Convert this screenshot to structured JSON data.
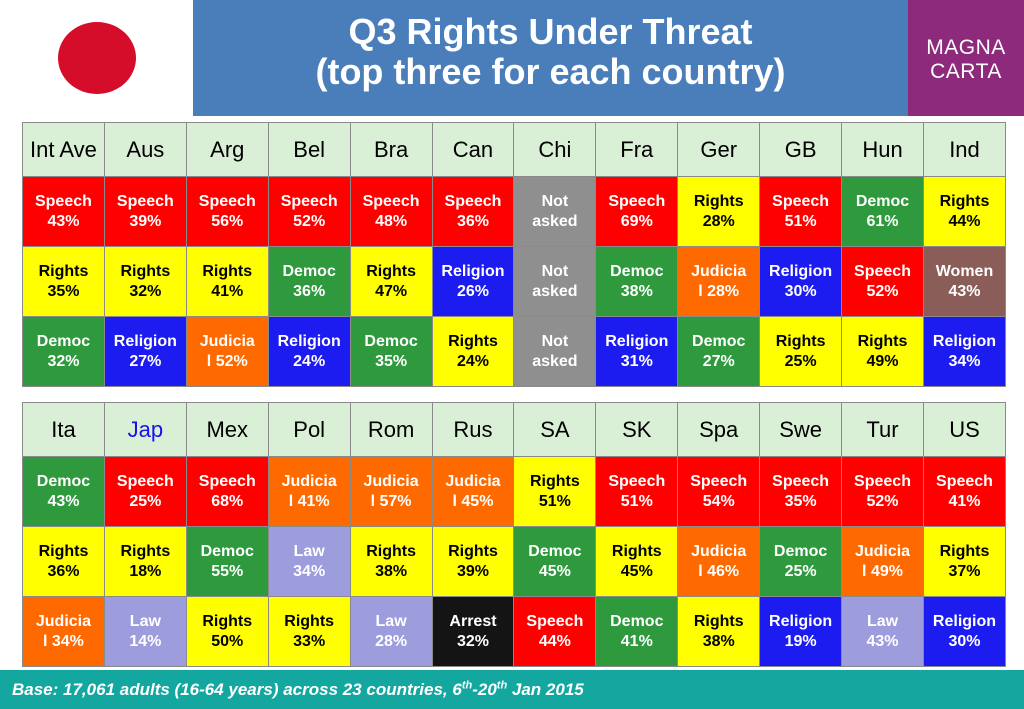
{
  "header": {
    "title_line1": "Q3 Rights Under Threat",
    "title_line2": "(top three for each country)",
    "logo_line1": "MAGNA",
    "logo_line2": "CARTA",
    "flag_color": "#d50d2a",
    "highlight_country_color": "#1a10e8"
  },
  "footer": {
    "text_prefix": "Base: 17,061 adults (16-64 years) across 23 countries, 6",
    "sup1": "th",
    "text_mid": "-20",
    "sup2": "th",
    "text_suffix": " Jan 2015"
  },
  "colors": {
    "Speech": "#ff0000",
    "Rights": "#ffff00",
    "Democ": "#2e9a3d",
    "Religion": "#1c1cf0",
    "Judicial": "#ff6a00",
    "Law": "#9d9ddd",
    "Women": "#8b5d58",
    "Arrest": "#141414",
    "Not asked": "#8f8f8f"
  },
  "chart_data": {
    "type": "table",
    "title": "Q3 Rights Under Threat (top three for each country)",
    "tables": [
      {
        "columns": [
          "Int Ave",
          "Aus",
          "Arg",
          "Bel",
          "Bra",
          "Can",
          "Chi",
          "Fra",
          "Ger",
          "GB",
          "Hun",
          "Ind"
        ],
        "rows": [
          [
            {
              "label": "Speech",
              "cat": "Speech",
              "value": "43%"
            },
            {
              "label": "Speech",
              "cat": "Speech",
              "value": "39%"
            },
            {
              "label": "Speech",
              "cat": "Speech",
              "value": "56%"
            },
            {
              "label": "Speech",
              "cat": "Speech",
              "value": "52%"
            },
            {
              "label": "Speech",
              "cat": "Speech",
              "value": "48%"
            },
            {
              "label": "Speech",
              "cat": "Speech",
              "value": "36%"
            },
            {
              "label": "Not",
              "cat": "Not asked",
              "value": "asked"
            },
            {
              "label": "Speech",
              "cat": "Speech",
              "value": "69%"
            },
            {
              "label": "Rights",
              "cat": "Rights",
              "value": "28%"
            },
            {
              "label": "Speech",
              "cat": "Speech",
              "value": "51%"
            },
            {
              "label": "Democ",
              "cat": "Democ",
              "value": "61%"
            },
            {
              "label": "Rights",
              "cat": "Rights",
              "value": "44%"
            }
          ],
          [
            {
              "label": "Rights",
              "cat": "Rights",
              "value": "35%"
            },
            {
              "label": "Rights",
              "cat": "Rights",
              "value": "32%"
            },
            {
              "label": "Rights",
              "cat": "Rights",
              "value": "41%"
            },
            {
              "label": "Democ",
              "cat": "Democ",
              "value": "36%"
            },
            {
              "label": "Rights",
              "cat": "Rights",
              "value": "47%"
            },
            {
              "label": "Religion",
              "cat": "Religion",
              "value": "26%"
            },
            {
              "label": "Not",
              "cat": "Not asked",
              "value": "asked"
            },
            {
              "label": "Democ",
              "cat": "Democ",
              "value": "38%"
            },
            {
              "label": "Judicia",
              "cat": "Judicial",
              "value": "l 28%"
            },
            {
              "label": "Religion",
              "cat": "Religion",
              "value": "30%"
            },
            {
              "label": "Speech",
              "cat": "Speech",
              "value": "52%"
            },
            {
              "label": "Women",
              "cat": "Women",
              "value": "43%"
            }
          ],
          [
            {
              "label": "Democ",
              "cat": "Democ",
              "value": "32%"
            },
            {
              "label": "Religion",
              "cat": "Religion",
              "value": "27%"
            },
            {
              "label": "Judicia",
              "cat": "Judicial",
              "value": "l 52%"
            },
            {
              "label": "Religion",
              "cat": "Religion",
              "value": "24%"
            },
            {
              "label": "Democ",
              "cat": "Democ",
              "value": "35%"
            },
            {
              "label": "Rights",
              "cat": "Rights",
              "value": "24%"
            },
            {
              "label": "Not",
              "cat": "Not asked",
              "value": "asked"
            },
            {
              "label": "Religion",
              "cat": "Religion",
              "value": "31%"
            },
            {
              "label": "Democ",
              "cat": "Democ",
              "value": "27%"
            },
            {
              "label": "Rights",
              "cat": "Rights",
              "value": "25%"
            },
            {
              "label": "Rights",
              "cat": "Rights",
              "value": "49%"
            },
            {
              "label": "Religion",
              "cat": "Religion",
              "value": "34%"
            }
          ]
        ]
      },
      {
        "columns": [
          "Ita",
          "Jap",
          "Mex",
          "Pol",
          "Rom",
          "Rus",
          "SA",
          "SK",
          "Spa",
          "Swe",
          "Tur",
          "US"
        ],
        "highlight_column": "Jap",
        "rows": [
          [
            {
              "label": "Democ",
              "cat": "Democ",
              "value": "43%"
            },
            {
              "label": "Speech",
              "cat": "Speech",
              "value": "25%"
            },
            {
              "label": "Speech",
              "cat": "Speech",
              "value": "68%"
            },
            {
              "label": "Judicia",
              "cat": "Judicial",
              "value": "l 41%"
            },
            {
              "label": "Judicia",
              "cat": "Judicial",
              "value": "l 57%"
            },
            {
              "label": "Judicia",
              "cat": "Judicial",
              "value": "l 45%"
            },
            {
              "label": "Rights",
              "cat": "Rights",
              "value": "51%"
            },
            {
              "label": "Speech",
              "cat": "Speech",
              "value": "51%"
            },
            {
              "label": "Speech",
              "cat": "Speech",
              "value": "54%"
            },
            {
              "label": "Speech",
              "cat": "Speech",
              "value": "35%"
            },
            {
              "label": "Speech",
              "cat": "Speech",
              "value": "52%"
            },
            {
              "label": "Speech",
              "cat": "Speech",
              "value": "41%"
            }
          ],
          [
            {
              "label": "Rights",
              "cat": "Rights",
              "value": "36%"
            },
            {
              "label": "Rights",
              "cat": "Rights",
              "value": "18%"
            },
            {
              "label": "Democ",
              "cat": "Democ",
              "value": "55%"
            },
            {
              "label": "Law",
              "cat": "Law",
              "value": "34%"
            },
            {
              "label": "Rights",
              "cat": "Rights",
              "value": "38%"
            },
            {
              "label": "Rights",
              "cat": "Rights",
              "value": "39%"
            },
            {
              "label": "Democ",
              "cat": "Democ",
              "value": "45%"
            },
            {
              "label": "Rights",
              "cat": "Rights",
              "value": "45%"
            },
            {
              "label": "Judicia",
              "cat": "Judicial",
              "value": "l 46%"
            },
            {
              "label": "Democ",
              "cat": "Democ",
              "value": "25%"
            },
            {
              "label": "Judicia",
              "cat": "Judicial",
              "value": "l 49%"
            },
            {
              "label": "Rights",
              "cat": "Rights",
              "value": "37%"
            }
          ],
          [
            {
              "label": "Judicia",
              "cat": "Judicial",
              "value": "l 34%"
            },
            {
              "label": "Law",
              "cat": "Law",
              "value": "14%"
            },
            {
              "label": "Rights",
              "cat": "Rights",
              "value": "50%"
            },
            {
              "label": "Rights",
              "cat": "Rights",
              "value": "33%"
            },
            {
              "label": "Law",
              "cat": "Law",
              "value": "28%"
            },
            {
              "label": "Arrest",
              "cat": "Arrest",
              "value": "32%"
            },
            {
              "label": "Speech",
              "cat": "Speech",
              "value": "44%"
            },
            {
              "label": "Democ",
              "cat": "Democ",
              "value": "41%"
            },
            {
              "label": "Rights",
              "cat": "Rights",
              "value": "38%"
            },
            {
              "label": "Religion",
              "cat": "Religion",
              "value": "19%"
            },
            {
              "label": "Law",
              "cat": "Law",
              "value": "43%"
            },
            {
              "label": "Religion",
              "cat": "Religion",
              "value": "30%"
            }
          ]
        ]
      }
    ]
  }
}
